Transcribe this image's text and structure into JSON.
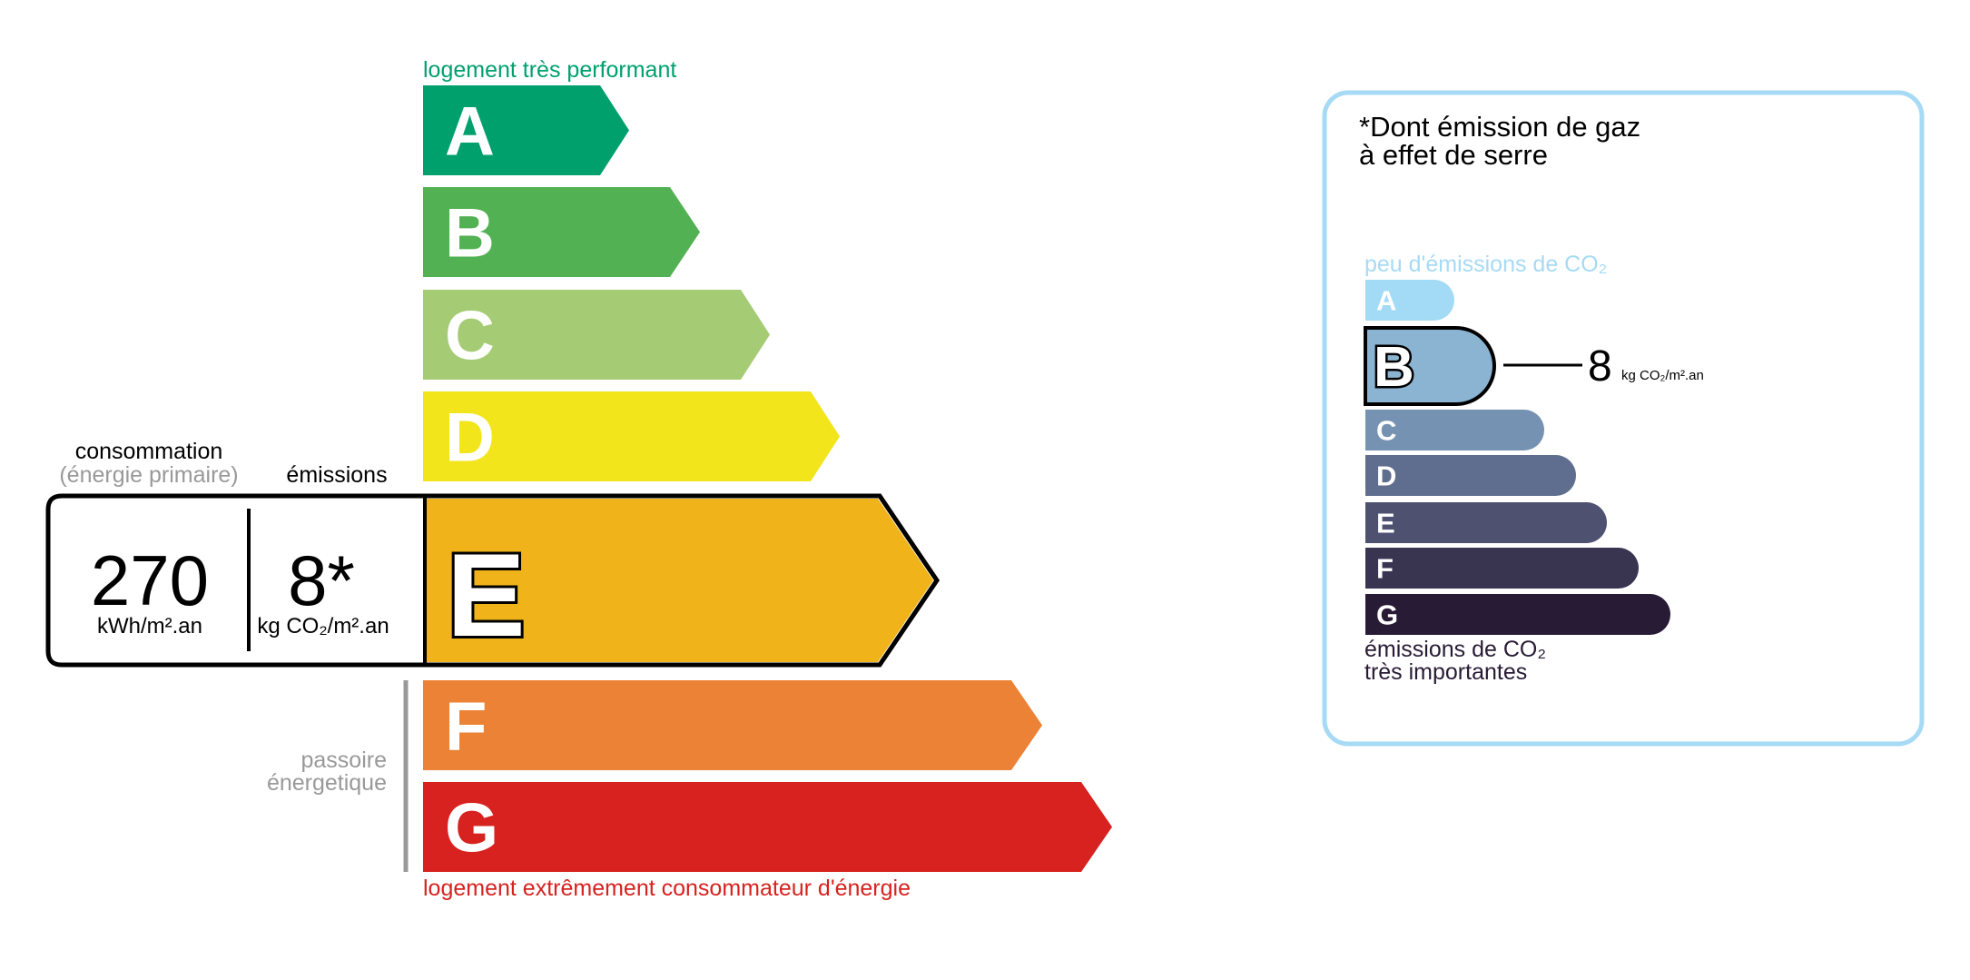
{
  "energy_label": {
    "top_label": "logement très performant",
    "bottom_label": "logement extrêmement consommateur d'énergie",
    "passoire_label": [
      "passoire",
      "énergetique"
    ],
    "classes": [
      {
        "letter": "A",
        "color": "#00a06d"
      },
      {
        "letter": "B",
        "color": "#52b153"
      },
      {
        "letter": "C",
        "color": "#a5cc74"
      },
      {
        "letter": "D",
        "color": "#f2e51b"
      },
      {
        "letter": "E",
        "color": "#f0b41a"
      },
      {
        "letter": "F",
        "color": "#eb8235"
      },
      {
        "letter": "G",
        "color": "#d7221f"
      }
    ],
    "current_class": "E",
    "consumption_header": "consommation",
    "consumption_subheader": "(énergie primaire)",
    "emissions_header": "émissions",
    "consumption_value": "270",
    "consumption_unit": "kWh/m².an",
    "emissions_value": "8*",
    "emissions_unit": "kg CO₂/m².an"
  },
  "ghg_panel": {
    "title_line1": "*Dont émission de gaz",
    "title_line2": "à effet de serre",
    "top_label": "peu d'émissions de CO₂",
    "bottom_label_line1": "émissions de CO₂",
    "bottom_label_line2": "très importantes",
    "classes": [
      {
        "letter": "A",
        "color": "#a3dbf6"
      },
      {
        "letter": "B",
        "color": "#8bb4d3"
      },
      {
        "letter": "C",
        "color": "#7692b3"
      },
      {
        "letter": "D",
        "color": "#5f6e8f"
      },
      {
        "letter": "E",
        "color": "#4e5170"
      },
      {
        "letter": "F",
        "color": "#393551"
      },
      {
        "letter": "G",
        "color": "#281b35"
      }
    ],
    "current_class": "B",
    "value": "8",
    "unit": "kg CO₂/m².an",
    "border_color": "#a6daf5"
  }
}
